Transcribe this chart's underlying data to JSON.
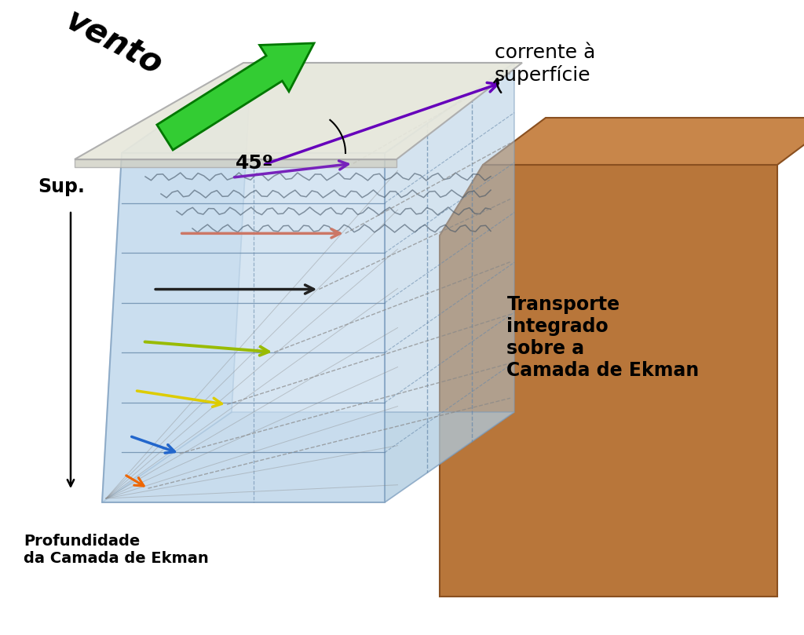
{
  "bg_color": "#ffffff",
  "water_color": "#c0d8ec",
  "water_alpha": 0.65,
  "brown_color": "#b8763a",
  "brown_top_color": "#c8864a",
  "plate_color": "#e8e8dc",
  "plate_edge_color": "#aaaaaa",
  "sup_label": "Sup.",
  "depth_label": "Profundidade\nda Camada de Ekman",
  "vento_label": "vento",
  "angle_label": "45º",
  "surface_current_label": "corrente à\nsuperfície",
  "transport_label": "Transporte\nintegrado\nsobre a\nCamada de Ekman",
  "arrow_data": [
    {
      "x0f": 0.42,
      "y0f": 0.93,
      "x1f": 0.88,
      "y1f": 0.97,
      "color": "#7722bb",
      "lw": 2.5
    },
    {
      "x0f": 0.22,
      "y0f": 0.77,
      "x1f": 0.85,
      "y1f": 0.77,
      "color": "#cc7766",
      "lw": 2.5
    },
    {
      "x0f": 0.12,
      "y0f": 0.61,
      "x1f": 0.75,
      "y1f": 0.61,
      "color": "#222222",
      "lw": 2.5
    },
    {
      "x0f": 0.08,
      "y0f": 0.46,
      "x1f": 0.58,
      "y1f": 0.43,
      "color": "#99bb00",
      "lw": 2.8
    },
    {
      "x0f": 0.05,
      "y0f": 0.32,
      "x1f": 0.4,
      "y1f": 0.28,
      "color": "#ddcc00",
      "lw": 2.5
    },
    {
      "x0f": 0.03,
      "y0f": 0.19,
      "x1f": 0.22,
      "y1f": 0.14,
      "color": "#2266cc",
      "lw": 2.5
    },
    {
      "x0f": 0.01,
      "y0f": 0.08,
      "x1f": 0.1,
      "y1f": 0.04,
      "color": "#ee6600",
      "lw": 2.2
    }
  ]
}
